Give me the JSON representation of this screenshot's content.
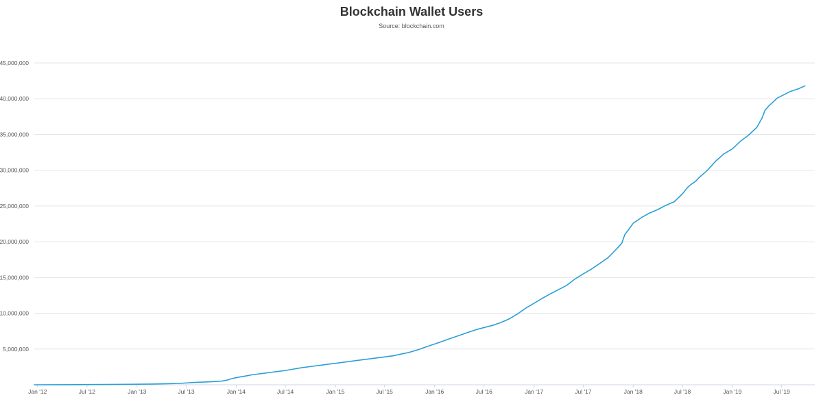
{
  "chart_data": {
    "type": "line",
    "title": "Blockchain Wallet Users",
    "subtitle": "Source: blockchain.com",
    "xlabel": "",
    "ylabel": "",
    "x_ticks": [
      "Jan '12",
      "Jul '12",
      "Jan '13",
      "Jul '13",
      "Jan '14",
      "Jul '14",
      "Jan '15",
      "Jul '15",
      "Jan '16",
      "Jul '16",
      "Jan '17",
      "Jul '17",
      "Jan '18",
      "Jul '18",
      "Jan '19",
      "Jul '19"
    ],
    "y_ticks": [
      "5,000,000",
      "10,000,000",
      "15,000,000",
      "20,000,000",
      "25,000,000",
      "30,000,000",
      "35,000,000",
      "40,000,000",
      "45,000,000"
    ],
    "y_tick_values": [
      5000000,
      10000000,
      15000000,
      20000000,
      25000000,
      30000000,
      35000000,
      40000000,
      45000000
    ],
    "ylim": [
      0,
      45000000
    ],
    "xlim": [
      "2011-12-20",
      "2019-10-31"
    ],
    "grid": true,
    "legend": "none",
    "line_color": "#2b9fd6",
    "series": [
      {
        "x": [
          "2011-12-20",
          "2012-03-01",
          "2012-06-01",
          "2012-09-01",
          "2012-12-01",
          "2013-03-01",
          "2013-06-01",
          "2013-08-01",
          "2013-10-01",
          "2013-11-10",
          "2013-11-28",
          "2013-12-15",
          "2014-01-01",
          "2014-02-01",
          "2014-03-01",
          "2014-04-01",
          "2014-05-01",
          "2014-06-01",
          "2014-07-01",
          "2014-08-01",
          "2014-09-01",
          "2014-10-01",
          "2014-11-01",
          "2014-12-01",
          "2015-01-01",
          "2015-02-01",
          "2015-03-01",
          "2015-04-01",
          "2015-05-01",
          "2015-06-01",
          "2015-07-01",
          "2015-08-01",
          "2015-09-01",
          "2015-10-01",
          "2015-11-01",
          "2015-12-01",
          "2016-01-01",
          "2016-02-01",
          "2016-03-01",
          "2016-04-01",
          "2016-05-01",
          "2016-06-01",
          "2016-07-01",
          "2016-08-01",
          "2016-09-01",
          "2016-10-01",
          "2016-11-01",
          "2016-12-01",
          "2017-01-01",
          "2017-02-01",
          "2017-03-01",
          "2017-04-01",
          "2017-05-01",
          "2017-06-01",
          "2017-07-01",
          "2017-08-01",
          "2017-09-01",
          "2017-10-01",
          "2017-11-01",
          "2017-11-20",
          "2017-12-01",
          "2017-12-15",
          "2018-01-01",
          "2018-02-01",
          "2018-03-01",
          "2018-04-01",
          "2018-05-01",
          "2018-06-01",
          "2018-07-01",
          "2018-07-20",
          "2018-08-01",
          "2018-08-20",
          "2018-09-01",
          "2018-10-01",
          "2018-11-01",
          "2018-12-01",
          "2019-01-01",
          "2019-02-01",
          "2019-03-01",
          "2019-04-01",
          "2019-04-20",
          "2019-05-01",
          "2019-05-15",
          "2019-06-01",
          "2019-06-15",
          "2019-07-01",
          "2019-08-01",
          "2019-09-01",
          "2019-09-25"
        ],
        "y": [
          0,
          10000,
          20000,
          40000,
          70000,
          100000,
          180000,
          330000,
          420000,
          520000,
          650000,
          850000,
          1000000,
          1200000,
          1400000,
          1550000,
          1700000,
          1850000,
          2000000,
          2200000,
          2400000,
          2550000,
          2700000,
          2850000,
          3000000,
          3150000,
          3300000,
          3450000,
          3600000,
          3750000,
          3900000,
          4050000,
          4300000,
          4550000,
          4900000,
          5300000,
          5700000,
          6100000,
          6500000,
          6900000,
          7300000,
          7700000,
          8000000,
          8300000,
          8700000,
          9200000,
          9900000,
          10700000,
          11400000,
          12100000,
          12700000,
          13300000,
          13900000,
          14800000,
          15500000,
          16200000,
          17000000,
          17800000,
          19000000,
          19800000,
          21000000,
          21700000,
          22600000,
          23400000,
          24000000,
          24500000,
          25100000,
          25600000,
          26700000,
          27600000,
          28000000,
          28500000,
          29000000,
          30000000,
          31300000,
          32300000,
          33000000,
          34100000,
          34900000,
          36000000,
          37300000,
          38400000,
          39000000,
          39600000,
          40100000,
          40400000,
          41000000,
          41400000,
          41800000
        ]
      }
    ]
  }
}
